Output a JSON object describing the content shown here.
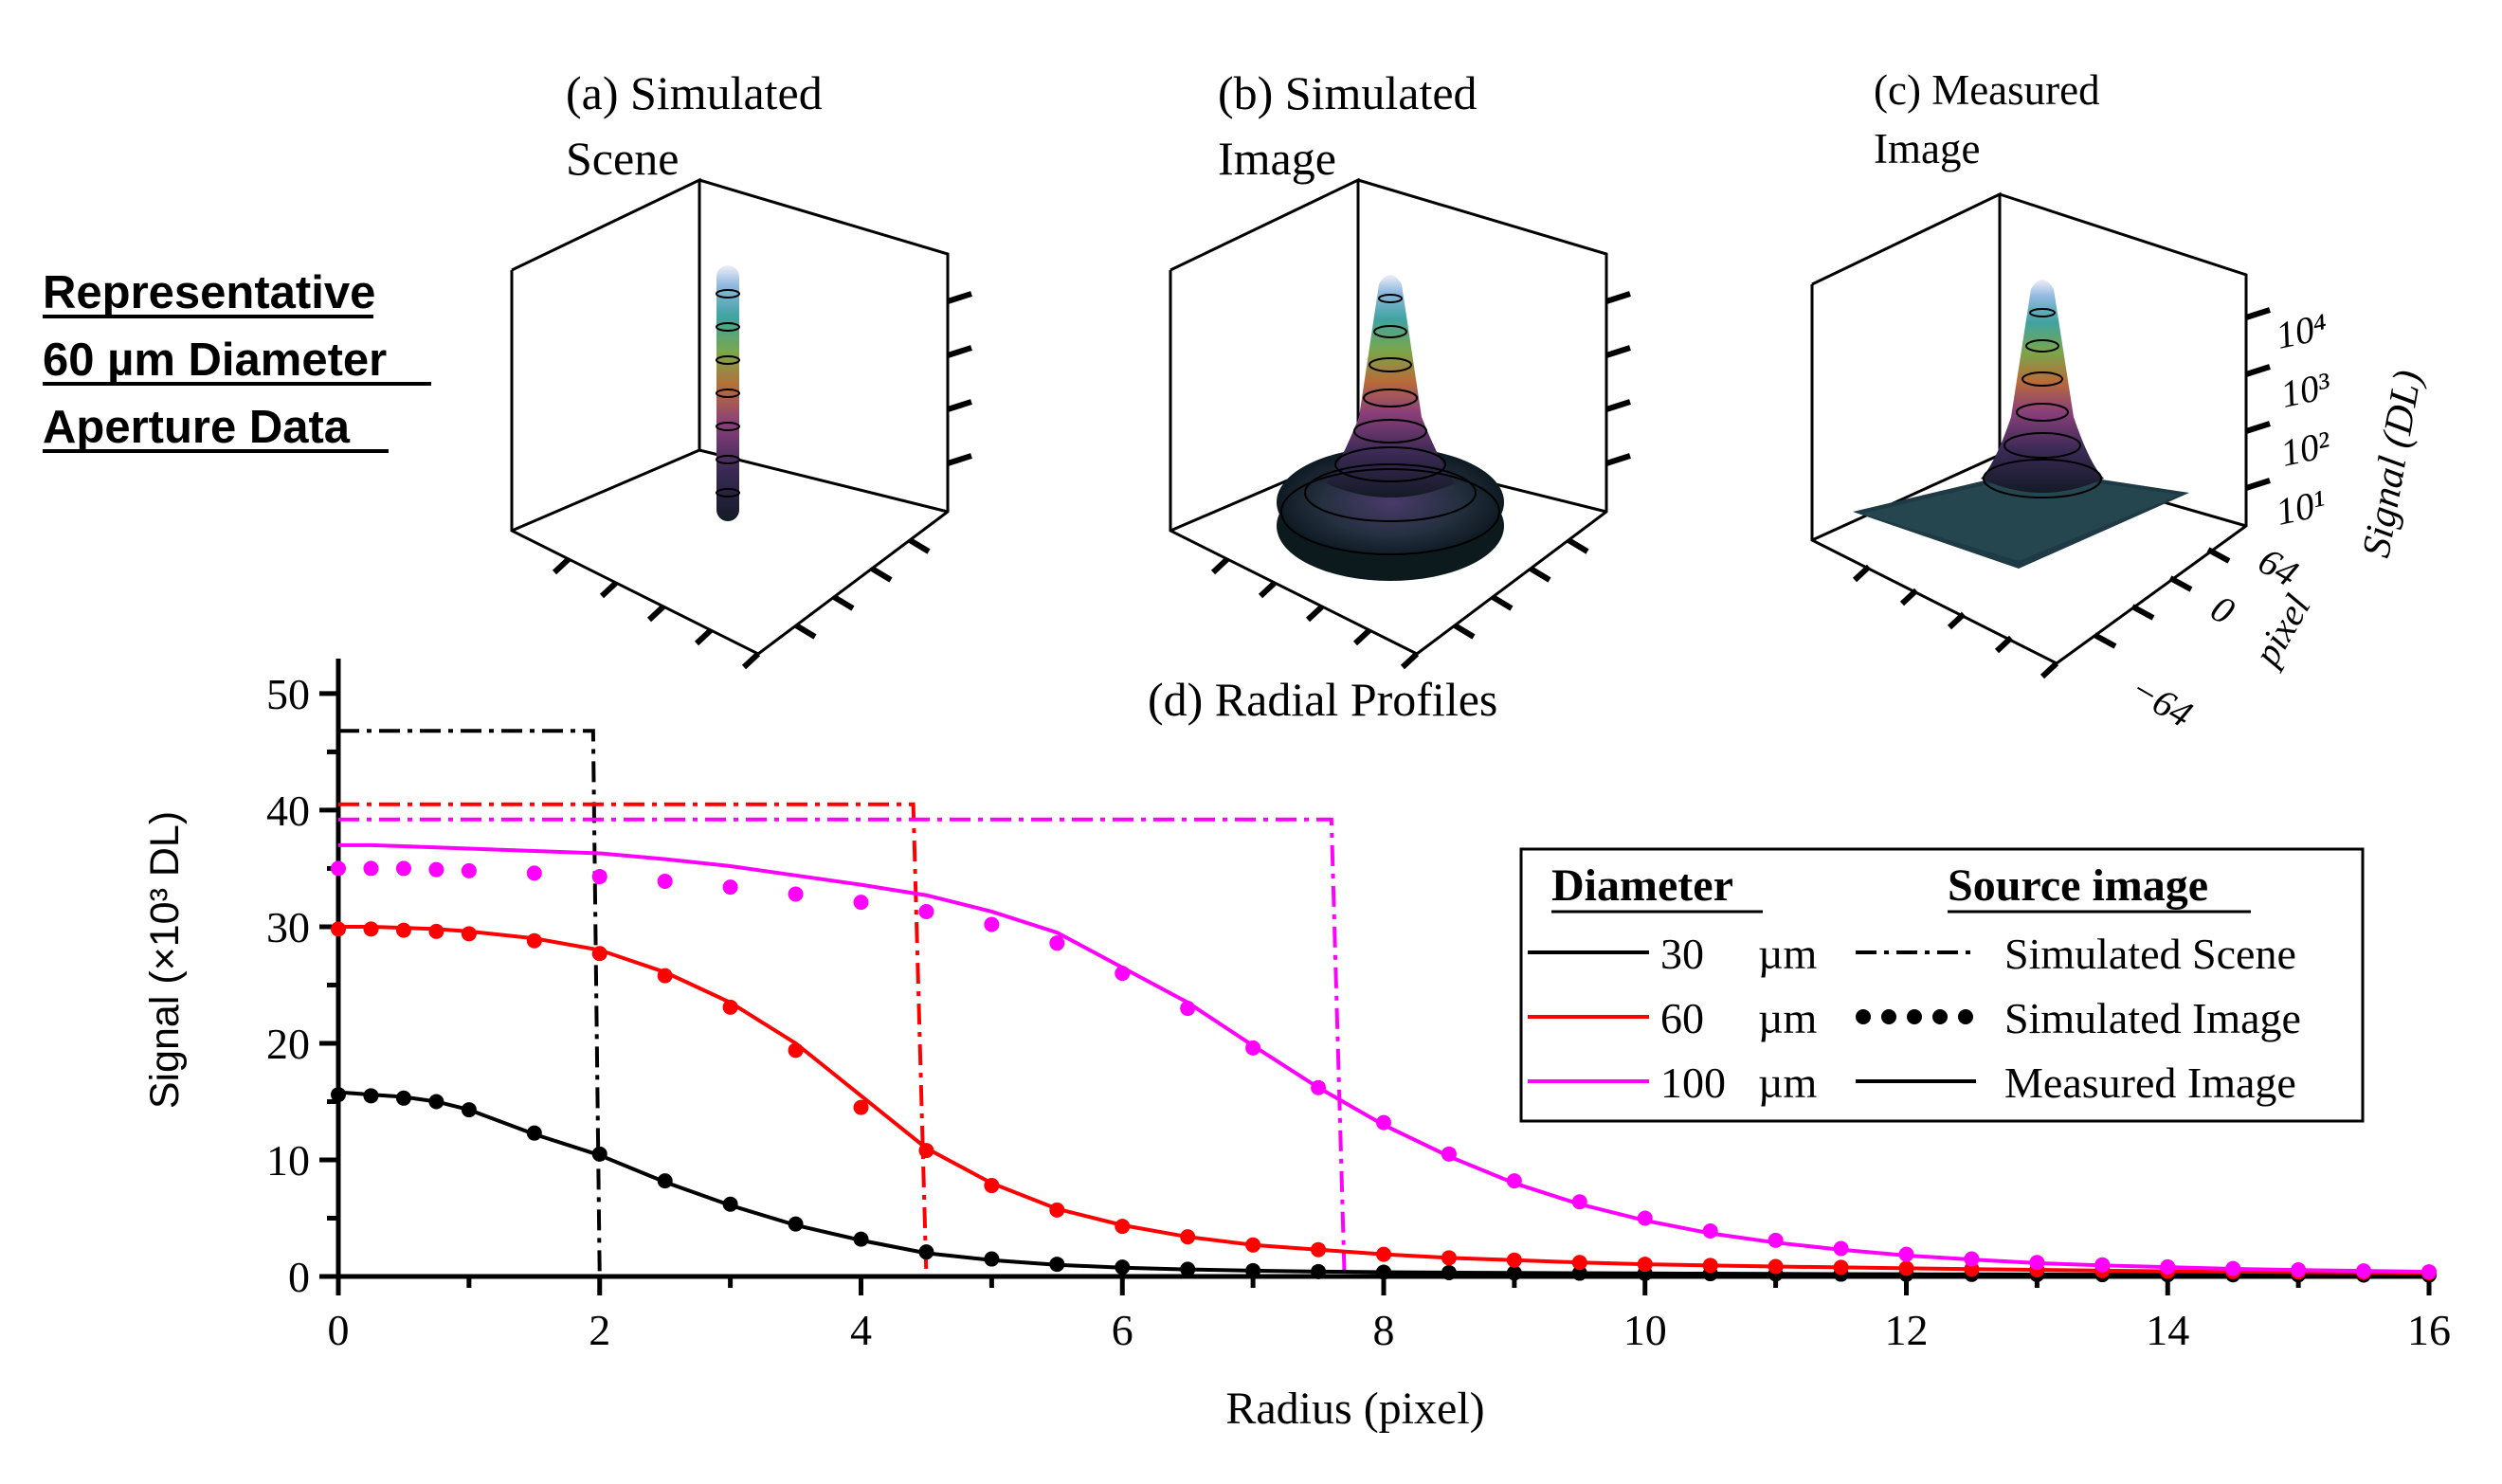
{
  "side_title": {
    "line1": "Representative",
    "line2": "60 µm Diameter",
    "line3": "Aperture Data"
  },
  "panels": {
    "a": {
      "line1": "(a) Simulated",
      "line2": "Scene"
    },
    "b": {
      "line1": "(b) Simulated",
      "line2": "Image"
    },
    "c": {
      "line1": "(c) Measured",
      "line2": "Image",
      "z_ticks": [
        "10⁴",
        "10³",
        "10²",
        "10¹"
      ],
      "z_label": "Signal (DL)",
      "pixel_ticks": [
        "64",
        "0",
        "−64"
      ],
      "pixel_label": "pixel"
    }
  },
  "chart_data": {
    "type": "line",
    "title": "(d) Radial Profiles",
    "xlabel": "Radius (pixel)",
    "ylabel": "Signal (×10³ DL)",
    "xlim": [
      0,
      16
    ],
    "ylim": [
      0,
      53
    ],
    "xticks": [
      0,
      2,
      4,
      6,
      8,
      10,
      12,
      14,
      16
    ],
    "yticks": [
      0,
      10,
      20,
      30,
      40,
      50
    ],
    "legend": {
      "placement": "right",
      "diameter_header": "Diameter",
      "source_header": "Source image",
      "diameters": [
        {
          "label": "30",
          "unit": "µm",
          "color": "#000000"
        },
        {
          "label": "60",
          "unit": "µm",
          "color": "#ff0000"
        },
        {
          "label": "100",
          "unit": "µm",
          "color": "#ff00ff"
        }
      ],
      "sources": [
        {
          "label": "Simulated Scene",
          "style": "dashdot"
        },
        {
          "label": "Simulated Image",
          "style": "dots"
        },
        {
          "label": "Measured Image",
          "style": "solid"
        }
      ]
    },
    "colors": {
      "30": "#000000",
      "60": "#ff0000",
      "100": "#ff00ff"
    },
    "scene": {
      "30": {
        "level": 46.8,
        "edge": 1.95,
        "edge_bottom": 2.0
      },
      "60": {
        "level": 40.5,
        "edge": 4.4,
        "edge_bottom": 4.5
      },
      "100": {
        "level": 39.2,
        "edge": 7.6,
        "edge_bottom": 7.7
      }
    },
    "radius": [
      0,
      0.25,
      0.5,
      0.75,
      1,
      1.5,
      2,
      2.5,
      3,
      3.5,
      4,
      4.5,
      5,
      5.5,
      6,
      6.5,
      7,
      7.5,
      8,
      8.5,
      9,
      9.5,
      10,
      10.5,
      11,
      11.5,
      12,
      12.5,
      13,
      13.5,
      14,
      14.5,
      15,
      15.5,
      16
    ],
    "series": [
      {
        "name": "30 µm measured",
        "diameter": "30",
        "source": "measured",
        "values": [
          15.8,
          15.6,
          15.4,
          15.0,
          14.3,
          12.2,
          10.4,
          8.1,
          6.1,
          4.4,
          3.1,
          2.0,
          1.4,
          1.0,
          0.75,
          0.6,
          0.5,
          0.42,
          0.37,
          0.33,
          0.3,
          0.28,
          0.26,
          0.24,
          0.22,
          0.2,
          0.19,
          0.18,
          0.17,
          0.16,
          0.15,
          0.14,
          0.13,
          0.12,
          0.11
        ]
      },
      {
        "name": "30 µm simulated image",
        "diameter": "30",
        "source": "sim_image",
        "values": [
          15.6,
          15.5,
          15.3,
          15.0,
          14.3,
          12.3,
          10.5,
          8.2,
          6.2,
          4.5,
          3.2,
          2.1,
          1.5,
          1.05,
          0.8,
          0.62,
          0.5,
          0.42,
          0.37,
          0.33,
          0.3,
          0.28,
          0.26,
          0.24,
          0.22,
          0.2,
          0.19,
          0.18,
          0.17,
          0.16,
          0.15,
          0.14,
          0.13,
          0.12,
          0.11
        ]
      },
      {
        "name": "60 µm measured",
        "diameter": "60",
        "source": "measured",
        "values": [
          30.0,
          30.0,
          29.9,
          29.8,
          29.6,
          29.0,
          28.0,
          26.1,
          23.5,
          20.0,
          15.5,
          11.0,
          8.0,
          5.8,
          4.4,
          3.4,
          2.7,
          2.3,
          1.9,
          1.6,
          1.4,
          1.2,
          1.05,
          0.95,
          0.85,
          0.78,
          0.7,
          0.63,
          0.57,
          0.5,
          0.45,
          0.42,
          0.38,
          0.35,
          0.32
        ]
      },
      {
        "name": "60 µm simulated image",
        "diameter": "60",
        "source": "sim_image",
        "values": [
          29.8,
          29.8,
          29.7,
          29.6,
          29.4,
          28.8,
          27.7,
          25.8,
          23.1,
          19.4,
          14.5,
          10.8,
          7.8,
          5.7,
          4.3,
          3.4,
          2.7,
          2.3,
          1.9,
          1.6,
          1.4,
          1.2,
          1.05,
          0.95,
          0.85,
          0.78,
          0.7,
          0.63,
          0.57,
          0.5,
          0.45,
          0.42,
          0.38,
          0.35,
          0.32
        ]
      },
      {
        "name": "100 µm measured",
        "diameter": "100",
        "source": "measured",
        "values": [
          37.0,
          37.0,
          36.9,
          36.8,
          36.7,
          36.5,
          36.3,
          35.8,
          35.2,
          34.4,
          33.6,
          32.7,
          31.3,
          29.5,
          26.5,
          23.5,
          19.8,
          16.2,
          13.0,
          10.3,
          8.0,
          6.2,
          4.8,
          3.7,
          2.9,
          2.3,
          1.8,
          1.45,
          1.15,
          0.95,
          0.8,
          0.65,
          0.55,
          0.48,
          0.4
        ]
      },
      {
        "name": "100 µm simulated image",
        "diameter": "100",
        "source": "sim_image",
        "values": [
          35.0,
          35.0,
          35.0,
          34.9,
          34.8,
          34.6,
          34.3,
          33.9,
          33.4,
          32.8,
          32.1,
          31.3,
          30.2,
          28.6,
          26.0,
          23.0,
          19.6,
          16.2,
          13.2,
          10.5,
          8.2,
          6.4,
          5.0,
          3.9,
          3.1,
          2.4,
          1.9,
          1.5,
          1.2,
          1.0,
          0.82,
          0.68,
          0.57,
          0.48,
          0.4
        ]
      }
    ]
  }
}
